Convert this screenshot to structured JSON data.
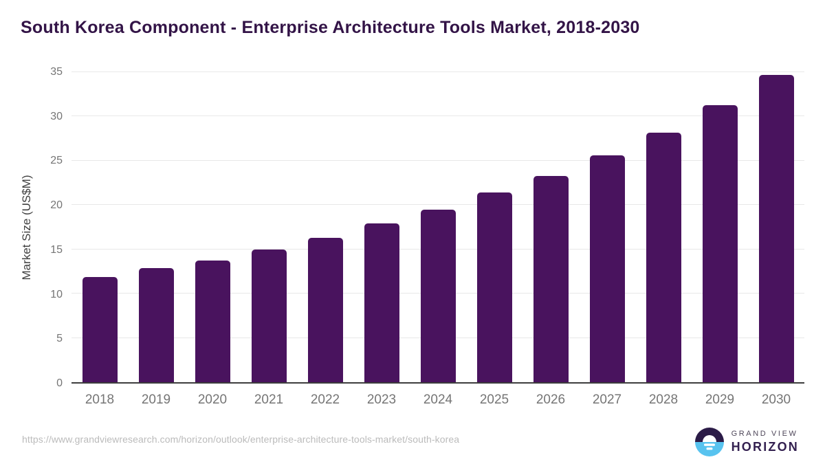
{
  "header": {
    "title": "South Korea Component - Enterprise Architecture Tools Market, 2018-2030"
  },
  "chart_data": {
    "type": "bar",
    "title": "South Korea Component - Enterprise Architecture Tools Market, 2018-2030",
    "categories": [
      "2018",
      "2019",
      "2020",
      "2021",
      "2022",
      "2023",
      "2024",
      "2025",
      "2026",
      "2027",
      "2028",
      "2029",
      "2030"
    ],
    "values": [
      11.9,
      12.9,
      13.7,
      15.0,
      16.3,
      17.9,
      19.5,
      21.4,
      23.3,
      25.6,
      28.2,
      31.3,
      34.7
    ],
    "xlabel": "",
    "ylabel": "Market Size (US$M)",
    "ylim": [
      0,
      35
    ],
    "yticks": [
      0,
      5,
      10,
      15,
      20,
      25,
      30,
      35
    ],
    "grid": true,
    "legend": false,
    "bar_color": "#49135E"
  },
  "footer": {
    "url": "https://www.grandviewresearch.com/horizon/outlook/enterprise-architecture-tools-market/south-korea",
    "logo": {
      "line1": "GRAND VIEW",
      "line2": "HORIZON",
      "icon": "horizon-sun-icon"
    }
  },
  "colors": {
    "bar": "#49135E",
    "title": "#331447",
    "axis_labels": "#757575",
    "axis_line": "#3D3D3D",
    "gridline": "#E8E8E8",
    "url_text": "#BBBBBB",
    "logo_purple": "#2B1B47",
    "logo_blue": "#58C3EF",
    "logo_text": "#332050"
  }
}
